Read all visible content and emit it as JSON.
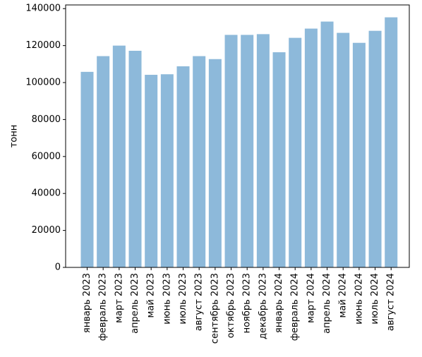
{
  "chart_data": {
    "type": "bar",
    "title": "",
    "xlabel": "",
    "ylabel": "тонн",
    "categories": [
      "январь 2023",
      "февраль 2023",
      "март 2023",
      "апрель 2023",
      "май 2023",
      "июнь 2023",
      "июль 2023",
      "август 2023",
      "сентябрь 2023",
      "октябрь 2023",
      "ноябрь 2023",
      "декабрь 2023",
      "январь 2024",
      "февраль 2024",
      "март 2024",
      "апрель 2024",
      "май 2024",
      "июнь 2024",
      "июль 2024",
      "август 2024"
    ],
    "values": [
      105800,
      114300,
      120000,
      117200,
      104200,
      104500,
      108800,
      114300,
      112700,
      125800,
      125800,
      126200,
      116400,
      124200,
      129200,
      133000,
      126900,
      121500,
      128000,
      135300
    ],
    "ylim": [
      0,
      142000
    ],
    "yticks": [
      0,
      20000,
      40000,
      60000,
      80000,
      100000,
      120000,
      140000
    ],
    "ytick_labels": [
      "0",
      "20000",
      "40000",
      "60000",
      "80000",
      "100000",
      "120000",
      "140000"
    ],
    "bar_color": "#8db9da",
    "grid": false,
    "legend": "none"
  }
}
